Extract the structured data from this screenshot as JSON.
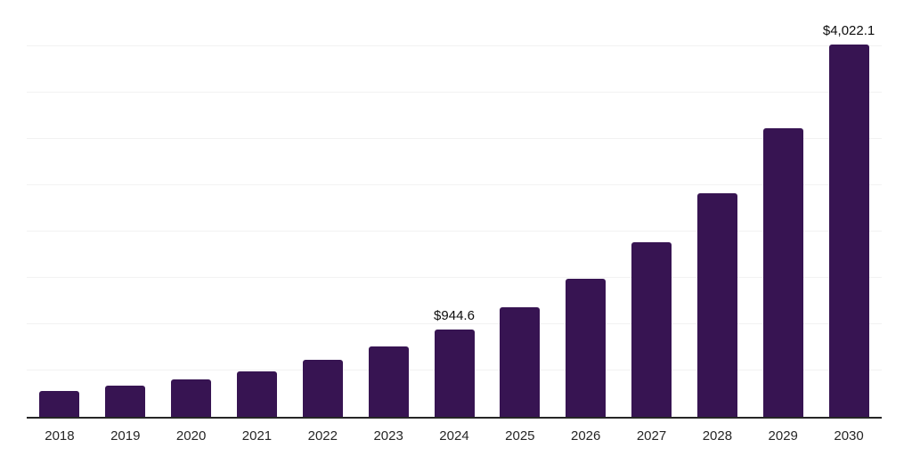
{
  "chart_data": {
    "type": "bar",
    "title": "",
    "xlabel": "",
    "ylabel": "",
    "categories": [
      "2018",
      "2019",
      "2020",
      "2021",
      "2022",
      "2023",
      "2024",
      "2025",
      "2026",
      "2027",
      "2028",
      "2029",
      "2030"
    ],
    "values": [
      280,
      335,
      400,
      495,
      620,
      760,
      944.6,
      1180,
      1490,
      1880,
      2410,
      3115,
      4022.1
    ],
    "data_labels": {
      "2024": "$944.6",
      "2030": "$4,022.1"
    },
    "ylim": [
      0,
      4500
    ],
    "gridline_step": 500,
    "grid": "horizontal light gridlines, no y-axis tick labels",
    "legend": "none",
    "colors": {
      "bar": "#371452",
      "axis": "#262626",
      "gridline": "#f2f2f2",
      "data_label": "#0d0d0d",
      "tick_label": "#262626",
      "background": "#ffffff"
    }
  }
}
